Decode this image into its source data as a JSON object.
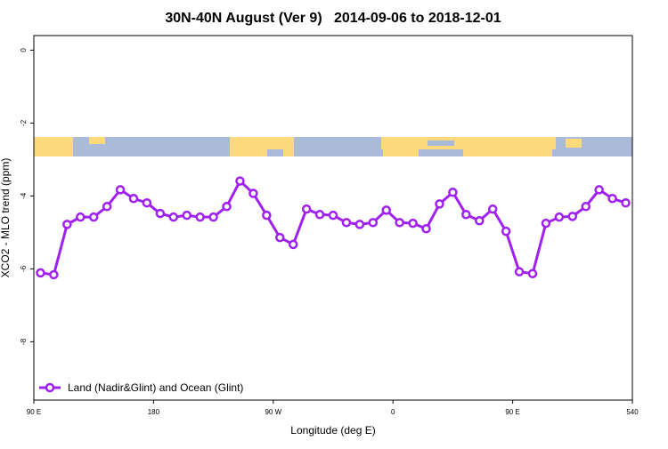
{
  "chart_data": {
    "type": "line",
    "title": "30N-40N August (Ver 9)   2014-09-06 to 2018-12-01",
    "x_label": "Longitude (deg E)",
    "y_label": "XCO2 - MLO trend (ppm)",
    "x": [
      95,
      105,
      115,
      125,
      135,
      145,
      155,
      165,
      175,
      185,
      195,
      205,
      215,
      225,
      235,
      245,
      255,
      265,
      275,
      285,
      295,
      305,
      315,
      325,
      335,
      345,
      355,
      365,
      375,
      385,
      395,
      405,
      415,
      425,
      435,
      445,
      455,
      465,
      475,
      485,
      495,
      505,
      515,
      525,
      535
    ],
    "series": [
      {
        "name": "Land (Nadir&Glint) and Ocean (Glint)",
        "color": "#a020f0",
        "values": [
          -6.11,
          -6.16,
          -4.78,
          -4.58,
          -4.58,
          -4.29,
          -3.83,
          -4.07,
          -4.19,
          -4.48,
          -4.58,
          -4.53,
          -4.58,
          -4.58,
          -4.29,
          -3.59,
          -3.93,
          -4.53,
          -5.14,
          -5.33,
          -4.36,
          -4.51,
          -4.53,
          -4.73,
          -4.78,
          -4.73,
          -4.39,
          -4.73,
          -4.75,
          -4.9,
          -4.22,
          -3.9,
          -4.51,
          -4.68,
          -4.36,
          -4.97,
          -6.08,
          -6.13,
          -4.75,
          -4.58,
          -4.56,
          -4.29,
          -3.83,
          -4.07,
          -4.19
        ]
      }
    ],
    "xlim": [
      90,
      540
    ],
    "xticks": [
      {
        "value": 90,
        "label": "90 E"
      },
      180,
      {
        "value": 270,
        "label": "90 W"
      },
      {
        "value": 360,
        "label": "0"
      },
      {
        "value": 450,
        "label": "90 E"
      },
      540
    ],
    "ylim": [
      -9.6,
      0.4
    ],
    "yticks": [
      0,
      -2,
      -4,
      -6,
      -8
    ],
    "legend": "bottom-left"
  }
}
